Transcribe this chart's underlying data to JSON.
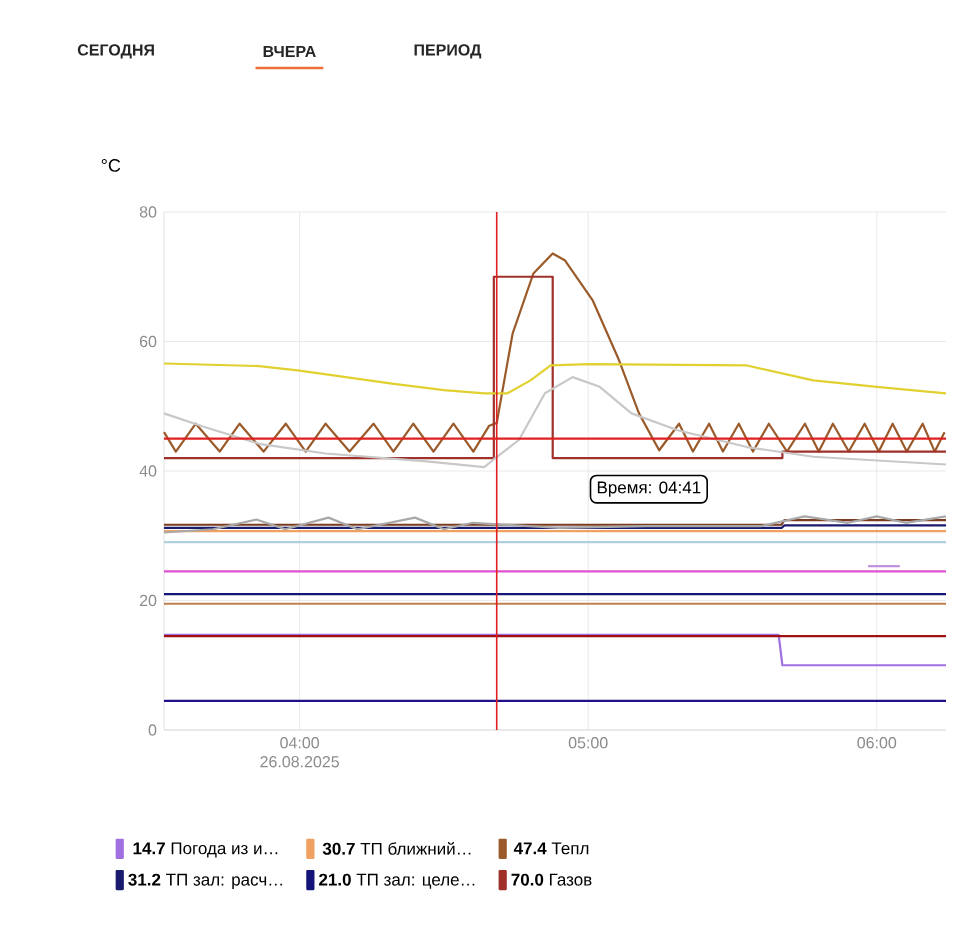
{
  "chart_data": {
    "type": "line",
    "ylabel": "°C",
    "annotations": [
      "СЕГОДНЯ",
      "ВЧЕРА",
      "ПЕРИОД",
      "Время: 04:41"
    ],
    "xlim": [
      3.53,
      6.24
    ],
    "xticks": [
      {
        "value": 4,
        "label": "04:00 26.08.2025"
      },
      {
        "value": 5,
        "label": "05:00"
      },
      {
        "value": 6,
        "label": "06:00"
      }
    ],
    "ylim": [
      0,
      80
    ],
    "yticks": [
      0,
      20,
      40,
      60,
      80
    ],
    "grid": true,
    "legend": "bottom",
    "ref_lines": [
      {
        "axis": "x",
        "value": 4.683,
        "color": "#e02020"
      }
    ],
    "series": [
      {
        "name": "**14.7** Погода из и…",
        "color": "#a070e0",
        "x": [
          3.53,
          5.66,
          5.673,
          6.24
        ],
        "values": [
          14.7,
          14.7,
          10,
          10
        ]
      },
      {
        "name": "**30.7** ТП ближний…",
        "color": "#f0a060",
        "x": [
          3.53,
          6.24
        ],
        "values": [
          30.7,
          30.7
        ]
      },
      {
        "name": "**47.4** Тепл",
        "color": "#9a5a2a",
        "x": [
          3.53,
          3.571,
          3.64,
          3.723,
          3.792,
          3.875,
          3.952,
          4.021,
          4.09,
          4.173,
          4.256,
          4.325,
          4.394,
          4.464,
          4.533,
          4.602,
          4.657,
          4.683,
          4.738,
          4.81,
          4.877,
          4.92,
          5.015,
          5.107,
          5.176,
          5.246,
          5.315,
          5.363,
          5.419,
          5.467,
          5.522,
          5.571,
          5.626,
          5.689,
          5.751,
          5.799,
          5.848,
          5.903,
          5.958,
          6.007,
          6.055,
          6.104,
          6.159,
          6.201,
          6.235
        ],
        "values": [
          46,
          43,
          47.3,
          43,
          47.3,
          43,
          47.3,
          43,
          47.3,
          43,
          47.3,
          43,
          47.3,
          43,
          47.3,
          43,
          47,
          47.4,
          61.2,
          70.5,
          73.6,
          72.5,
          66.4,
          57.1,
          48.9,
          43.2,
          47.3,
          43,
          47.3,
          43,
          47.3,
          43,
          47.3,
          43,
          47.3,
          43,
          47.3,
          43,
          47.3,
          43,
          47.3,
          43,
          47.3,
          43,
          46
        ]
      },
      {
        "name": "**31.2** ТП зал: расч…",
        "color": "#1a1a6e",
        "x": [
          3.53,
          5.67,
          5.68,
          6.24
        ],
        "values": [
          31.2,
          31.2,
          31.6,
          31.6
        ]
      },
      {
        "name": "**21.0** ТП зал: целе…",
        "color": "#14147a",
        "x": [
          3.53,
          6.24
        ],
        "values": [
          21,
          21
        ]
      },
      {
        "name": "**70.0** Газов",
        "type": "step",
        "color": "#a0302a",
        "x": [
          3.53,
          4.673,
          4.877,
          5.673,
          6.24
        ],
        "values": [
          42,
          70,
          42,
          43,
          43
        ]
      },
      {
        "color": "#e0d030",
        "x": [
          3.53,
          3.86,
          4.0,
          4.32,
          4.5,
          4.64,
          4.72,
          4.8,
          4.87,
          5.0,
          5.55,
          5.78,
          6.0,
          6.24
        ],
        "values": [
          56.6,
          56.2,
          55.5,
          53.5,
          52.5,
          52,
          52,
          54,
          56.3,
          56.5,
          56.3,
          54,
          53,
          52
        ]
      },
      {
        "color": "#c8c8c8",
        "x": [
          3.53,
          3.67,
          3.86,
          4.09,
          4.44,
          4.64,
          4.67,
          4.76,
          4.85,
          4.946,
          5.04,
          5.15,
          5.31,
          5.55,
          5.78,
          6.24
        ],
        "values": [
          48.9,
          46.8,
          44.2,
          42.7,
          41.5,
          40.6,
          41.7,
          44.8,
          52,
          54.5,
          53,
          48.9,
          46.3,
          43.7,
          42.2,
          41
        ]
      },
      {
        "color": "#e02020",
        "x": [
          3.53,
          6.24
        ],
        "values": [
          45,
          45
        ]
      },
      {
        "color": "#7a3b1e",
        "x": [
          3.53,
          5.67,
          5.68,
          6.24
        ],
        "values": [
          31.7,
          31.7,
          32.4,
          32.4
        ]
      },
      {
        "color": "#a8a8a8",
        "x": [
          3.53,
          3.7,
          3.85,
          3.95,
          4.1,
          4.2,
          4.4,
          4.5,
          4.6,
          4.9,
          5.2,
          5.6,
          5.75,
          5.9,
          6.0,
          6.1,
          6.24
        ],
        "values": [
          30.5,
          31,
          32.5,
          31,
          32.8,
          31,
          32.8,
          31,
          32,
          31.2,
          31.5,
          31.5,
          33,
          32,
          33,
          32,
          33
        ]
      },
      {
        "color": "#b0d0e0",
        "x": [
          3.53,
          6.24
        ],
        "values": [
          29,
          29
        ]
      },
      {
        "color": "#e050d0",
        "x": [
          3.53,
          6.24
        ],
        "values": [
          24.5,
          24.5
        ]
      },
      {
        "color": "#c090e0",
        "x": [
          5.97,
          6.08
        ],
        "values": [
          25.3,
          25.3
        ]
      },
      {
        "color": "#c08050",
        "x": [
          3.53,
          6.24
        ],
        "values": [
          19.5,
          19.5
        ]
      },
      {
        "color": "#a01010",
        "x": [
          3.53,
          6.24
        ],
        "values": [
          14.5,
          14.5
        ]
      },
      {
        "color": "#20108a",
        "x": [
          3.53,
          6.24
        ],
        "values": [
          4.5,
          4.5
        ]
      }
    ]
  }
}
